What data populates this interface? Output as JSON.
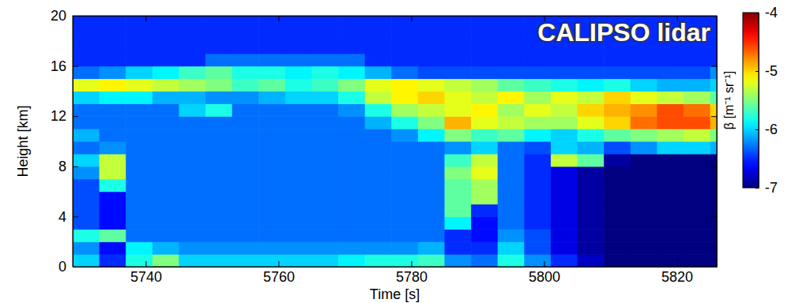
{
  "chart_data": {
    "type": "heatmap",
    "title": "CALIPSO lidar",
    "x_label": "Time [s]",
    "y_label": "Height [km]",
    "xlim": [
      5729,
      5826
    ],
    "ylim": [
      0,
      20
    ],
    "xticks": [
      5740,
      5760,
      5780,
      5800,
      5820
    ],
    "yticks": [
      0,
      4,
      8,
      12,
      16,
      20
    ],
    "x_bins": [
      5729,
      5733,
      5737,
      5741,
      5745,
      5749,
      5753,
      5757,
      5761,
      5765,
      5769,
      5773,
      5777,
      5781,
      5785,
      5789,
      5793,
      5797,
      5801,
      5805,
      5809,
      5813,
      5817,
      5821,
      5825,
      5829
    ],
    "y_bins": [
      0,
      1,
      2,
      3,
      4,
      5,
      6,
      7,
      8,
      9,
      10,
      11,
      12,
      13,
      14,
      15,
      16,
      17,
      18,
      19,
      20
    ],
    "cells": [
      [
        -6.0,
        -6.5,
        -5.8,
        -5.5,
        -6.0,
        -6.0,
        -6.0,
        -6.0,
        -6.0,
        -6.0,
        -5.9,
        -5.8,
        -5.8,
        -5.7,
        -6.2,
        -6.3,
        -5.8,
        -6.2,
        -6.5,
        -6.8,
        -7.0,
        -7.0,
        -7.0,
        -7.0,
        -7.0
      ],
      [
        -6.2,
        -6.6,
        -5.9,
        -6.1,
        -6.2,
        -6.2,
        -6.2,
        -6.2,
        -6.2,
        -6.2,
        -6.2,
        -6.2,
        -6.2,
        -6.1,
        -6.5,
        -6.5,
        -6.0,
        -6.4,
        -6.7,
        -6.9,
        -7.0,
        -7.0,
        -7.0,
        -7.0,
        -7.0
      ],
      [
        -5.8,
        -5.6,
        -6.3,
        -6.3,
        -6.3,
        -6.3,
        -6.3,
        -6.3,
        -6.3,
        -6.3,
        -6.3,
        -6.3,
        -6.3,
        -6.3,
        -6.5,
        -6.6,
        -6.2,
        -6.4,
        -6.7,
        -6.9,
        -7.0,
        -7.0,
        -7.0,
        -7.0,
        -7.0
      ],
      [
        -6.4,
        -6.6,
        -6.3,
        -6.3,
        -6.3,
        -6.3,
        -6.3,
        -6.3,
        -6.3,
        -6.3,
        -6.3,
        -6.3,
        -6.3,
        -6.3,
        -5.9,
        -6.6,
        -6.3,
        -6.5,
        -6.7,
        -6.9,
        -7.0,
        -7.0,
        -7.0,
        -7.0,
        -7.0
      ],
      [
        -6.4,
        -6.6,
        -6.3,
        -6.3,
        -6.3,
        -6.3,
        -6.3,
        -6.3,
        -6.3,
        -6.3,
        -6.3,
        -6.3,
        -6.3,
        -6.3,
        -5.6,
        -6.5,
        -6.3,
        -6.5,
        -6.7,
        -6.9,
        -7.0,
        -7.0,
        -7.0,
        -7.0,
        -7.0
      ],
      [
        -6.4,
        -6.6,
        -6.3,
        -6.3,
        -6.3,
        -6.3,
        -6.3,
        -6.3,
        -6.3,
        -6.3,
        -6.3,
        -6.3,
        -6.3,
        -6.3,
        -5.6,
        -5.4,
        -6.3,
        -6.5,
        -6.7,
        -6.9,
        -7.0,
        -7.0,
        -7.0,
        -7.0,
        -7.0
      ],
      [
        -6.4,
        -5.8,
        -6.3,
        -6.3,
        -6.3,
        -6.3,
        -6.3,
        -6.3,
        -6.3,
        -6.3,
        -6.3,
        -6.3,
        -6.3,
        -6.3,
        -5.6,
        -5.4,
        -6.3,
        -6.5,
        -6.7,
        -6.9,
        -7.0,
        -7.0,
        -7.0,
        -7.0,
        -7.0
      ],
      [
        -6.2,
        -5.3,
        -6.3,
        -6.3,
        -6.3,
        -6.3,
        -6.3,
        -6.3,
        -6.3,
        -6.3,
        -6.3,
        -6.3,
        -6.3,
        -6.3,
        -5.5,
        -5.2,
        -6.3,
        -6.5,
        -6.7,
        -6.9,
        -7.0,
        -7.0,
        -7.0,
        -7.0,
        -7.0
      ],
      [
        -6.0,
        -5.3,
        -6.3,
        -6.3,
        -6.3,
        -6.3,
        -6.3,
        -6.3,
        -6.3,
        -6.3,
        -6.3,
        -6.3,
        -6.3,
        -6.3,
        -5.7,
        -5.3,
        -6.3,
        -6.5,
        -5.3,
        -5.6,
        -6.9,
        -7.0,
        -7.0,
        -7.0,
        -7.0
      ],
      [
        -6.3,
        -6.2,
        -6.3,
        -6.3,
        -6.3,
        -6.3,
        -6.3,
        -6.3,
        -6.3,
        -6.3,
        -6.3,
        -6.3,
        -6.3,
        -6.3,
        -6.2,
        -6.0,
        -6.3,
        -6.4,
        -6.0,
        -6.1,
        -6.4,
        -6.2,
        -6.0,
        -6.0,
        -6.1
      ],
      [
        -6.1,
        -6.3,
        -6.3,
        -6.3,
        -6.3,
        -6.3,
        -6.3,
        -6.3,
        -6.3,
        -6.3,
        -6.3,
        -6.3,
        -6.2,
        -5.9,
        -5.5,
        -5.7,
        -5.6,
        -5.9,
        -6.0,
        -5.8,
        -5.6,
        -5.5,
        -5.4,
        -5.3,
        -5.5
      ],
      [
        -6.3,
        -6.3,
        -6.3,
        -6.3,
        -6.3,
        -6.3,
        -6.3,
        -6.3,
        -6.3,
        -6.3,
        -6.3,
        -6.1,
        -5.8,
        -5.5,
        -4.9,
        -5.2,
        -5.3,
        -5.4,
        -5.4,
        -5.2,
        -5.0,
        -4.7,
        -4.6,
        -4.6,
        -4.9
      ],
      [
        -6.3,
        -6.3,
        -6.3,
        -6.3,
        -6.0,
        -5.8,
        -6.3,
        -6.3,
        -6.3,
        -6.3,
        -6.2,
        -5.8,
        -5.4,
        -5.3,
        -5.2,
        -5.1,
        -5.4,
        -5.2,
        -5.3,
        -5.0,
        -4.9,
        -4.8,
        -4.6,
        -4.7,
        -5.0
      ],
      [
        -6.0,
        -5.9,
        -5.9,
        -6.1,
        -6.1,
        -6.2,
        -6.2,
        -6.1,
        -6.0,
        -6.0,
        -5.8,
        -5.3,
        -5.1,
        -5.0,
        -5.2,
        -5.3,
        -5.1,
        -5.4,
        -5.2,
        -5.3,
        -5.0,
        -5.2,
        -5.3,
        -5.4,
        -5.6
      ],
      [
        -5.2,
        -5.1,
        -5.2,
        -5.3,
        -5.4,
        -5.5,
        -5.7,
        -5.6,
        -5.8,
        -5.7,
        -5.5,
        -5.2,
        -5.1,
        -5.2,
        -5.3,
        -5.4,
        -5.6,
        -5.7,
        -5.8,
        -5.9,
        -5.8,
        -6.0,
        -6.1,
        -6.1,
        -6.0
      ],
      [
        -6.3,
        -6.2,
        -6.0,
        -5.9,
        -5.7,
        -5.6,
        -5.8,
        -5.8,
        -5.9,
        -5.8,
        -5.9,
        -6.1,
        -6.3,
        -6.4,
        -6.4,
        -6.4,
        -6.4,
        -6.4,
        -6.4,
        -6.4,
        -6.4,
        -6.4,
        -6.4,
        -6.4,
        -6.2
      ],
      [
        -6.5,
        -6.5,
        -6.5,
        -6.5,
        -6.5,
        -6.3,
        -6.3,
        -6.3,
        -6.3,
        -6.3,
        -6.3,
        -6.5,
        -6.5,
        -6.5,
        -6.5,
        -6.5,
        -6.5,
        -6.5,
        -6.5,
        -6.5,
        -6.5,
        -6.5,
        -6.5,
        -6.5,
        -6.5
      ],
      [
        -6.5,
        -6.5,
        -6.5,
        -6.5,
        -6.5,
        -6.5,
        -6.5,
        -6.5,
        -6.5,
        -6.5,
        -6.5,
        -6.5,
        -6.5,
        -6.5,
        -6.5,
        -6.5,
        -6.5,
        -6.5,
        -6.5,
        -6.5,
        -6.5,
        -6.5,
        -6.5,
        -6.5,
        -6.5
      ],
      [
        -6.5,
        -6.5,
        -6.5,
        -6.5,
        -6.5,
        -6.5,
        -6.5,
        -6.5,
        -6.5,
        -6.5,
        -6.5,
        -6.5,
        -6.5,
        -6.5,
        -6.5,
        -6.5,
        -6.5,
        -6.5,
        -6.5,
        -6.5,
        -6.5,
        -6.5,
        -6.5,
        -6.5,
        -6.5
      ],
      [
        -6.5,
        -6.5,
        -6.5,
        -6.5,
        -6.5,
        -6.5,
        -6.5,
        -6.5,
        -6.5,
        -6.5,
        -6.5,
        -6.5,
        -6.5,
        -6.5,
        -6.5,
        -6.5,
        -6.5,
        -6.5,
        -6.5,
        -6.5,
        -6.5,
        -6.5,
        -6.5,
        -6.5,
        -6.5
      ]
    ],
    "colorbar_range": [
      -7,
      -4
    ],
    "colorbar_ticks": [
      -4,
      -5,
      -6,
      -7
    ],
    "colorbar_label": "β [m⁻¹ sr⁻¹]"
  }
}
